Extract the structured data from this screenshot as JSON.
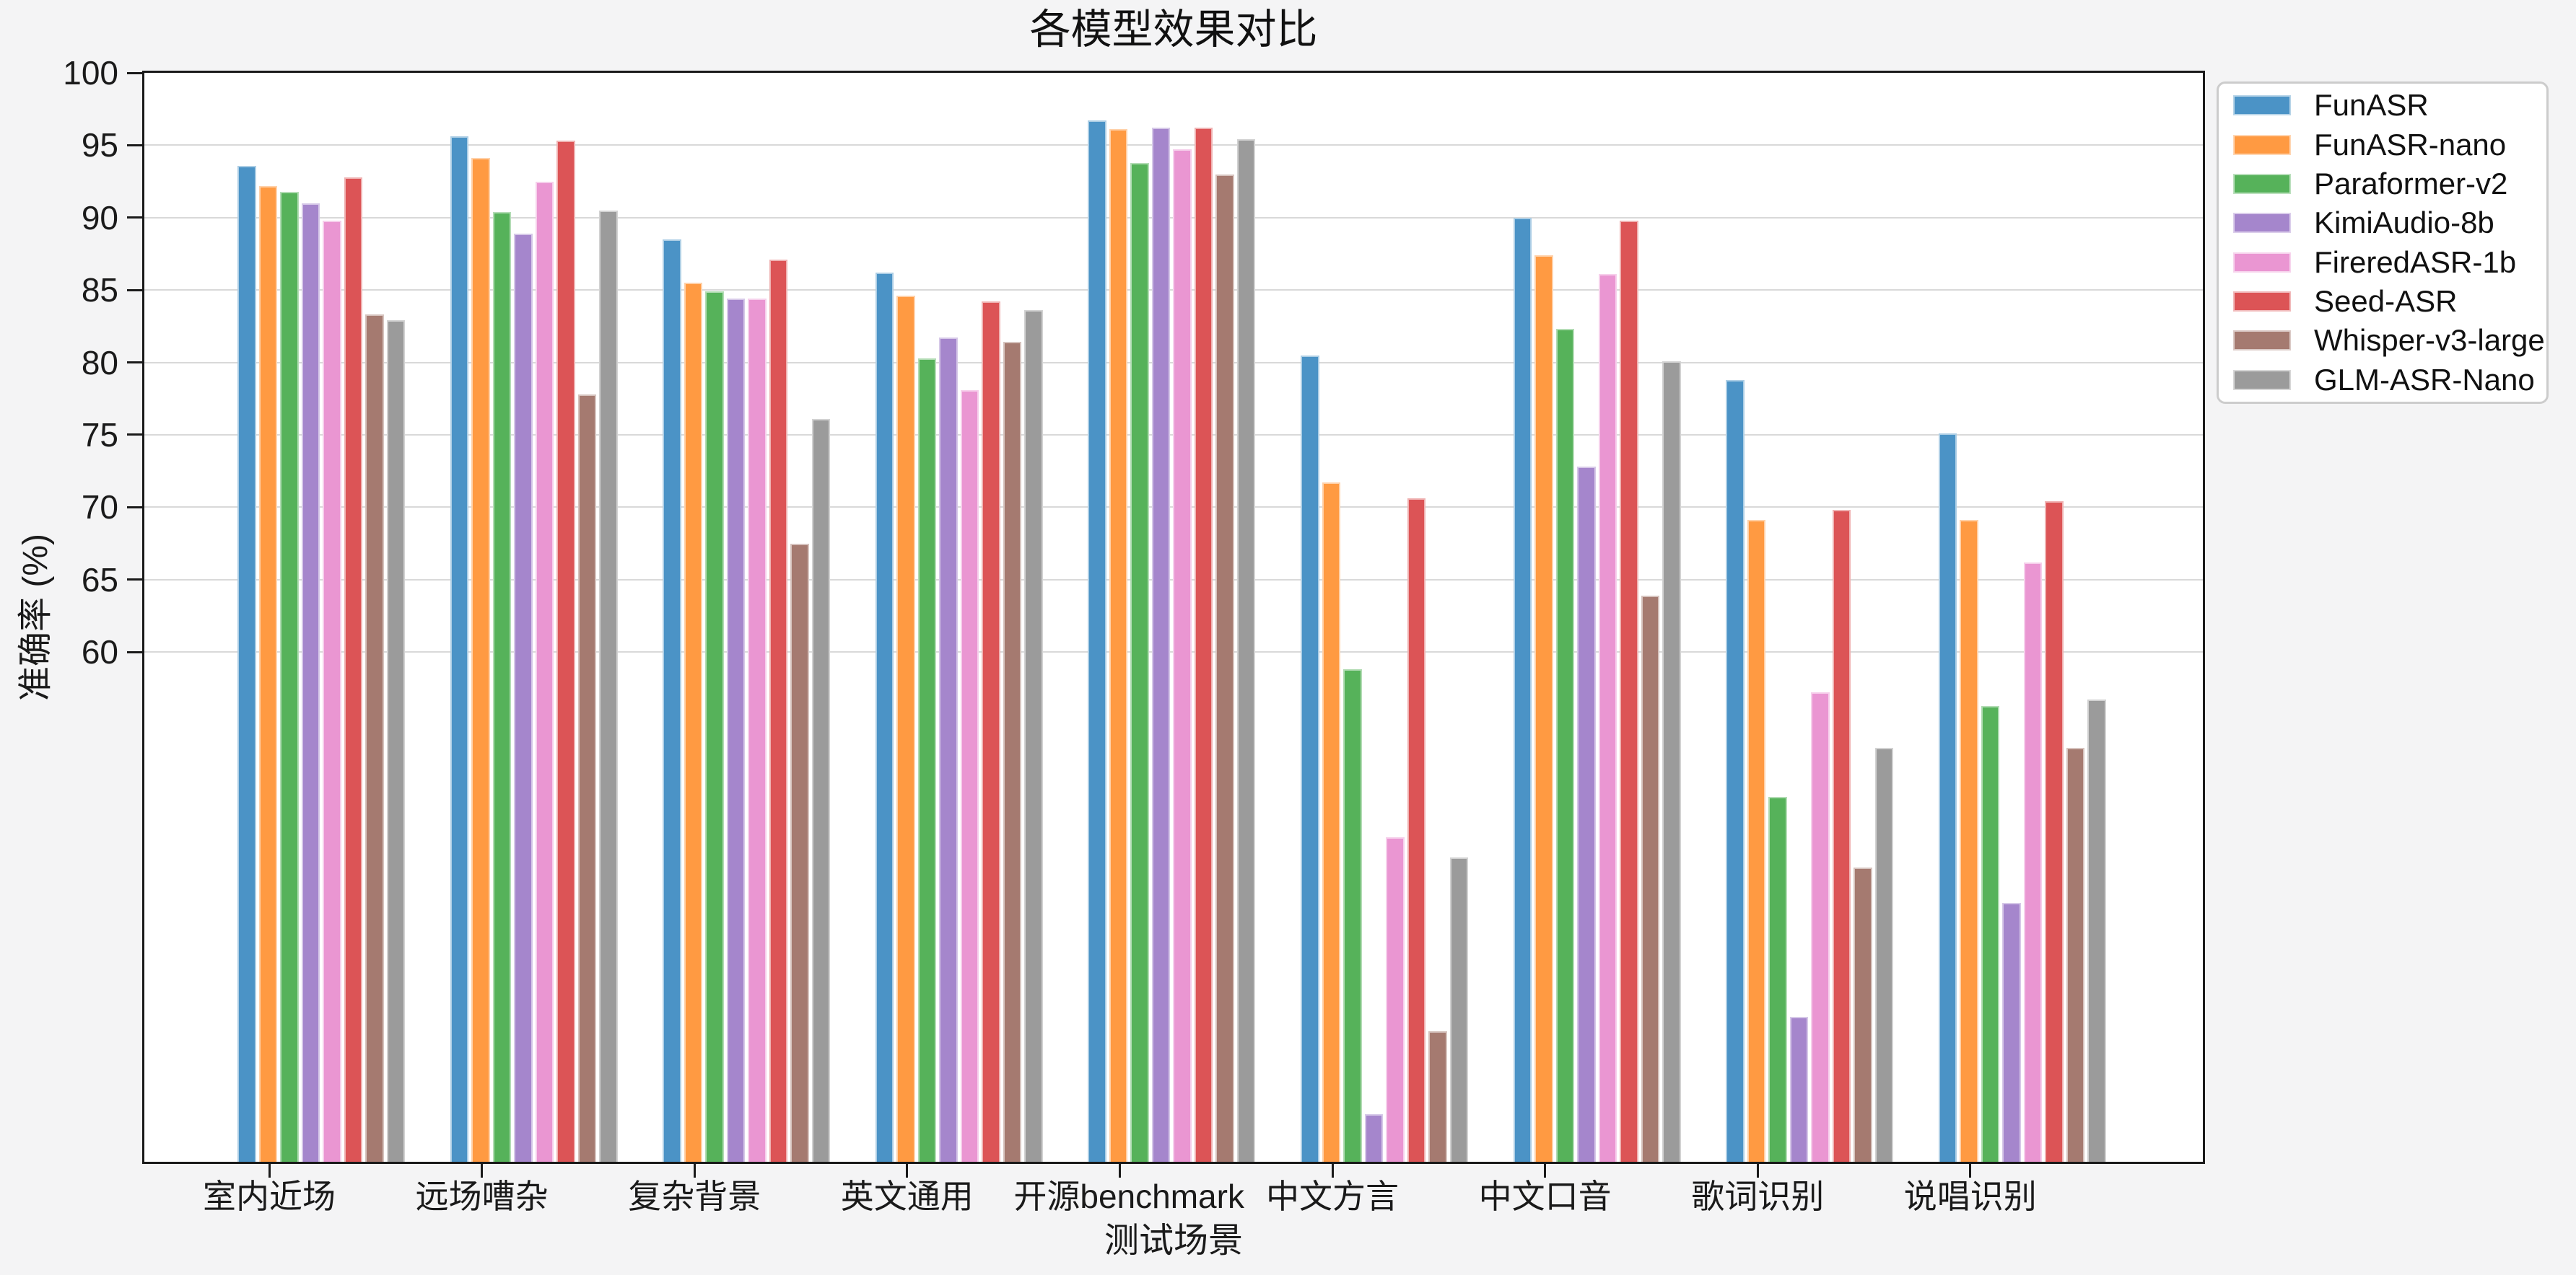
{
  "chart_data": {
    "type": "bar",
    "title": "各模型效果对比",
    "xlabel": "测试场景",
    "ylabel": "准确率 (%)",
    "categories": [
      "室内近场",
      "远场嘈杂",
      "复杂背景",
      "英文通用",
      "开源benchmark",
      "中文方言",
      "中文口音",
      "歌词识别",
      "说唱识别"
    ],
    "series": [
      {
        "name": "FunASR",
        "color": "#4b93c6",
        "values": [
          93.6,
          95.6,
          88.5,
          86.2,
          96.7,
          80.5,
          90.0,
          78.8,
          75.1
        ]
      },
      {
        "name": "FunASR-nano",
        "color": "#ff9a42",
        "values": [
          92.2,
          94.1,
          85.5,
          84.6,
          96.1,
          71.7,
          87.4,
          69.1,
          69.1
        ]
      },
      {
        "name": "Paraformer-v2",
        "color": "#56b25a",
        "values": [
          91.8,
          90.4,
          84.9,
          80.3,
          93.8,
          58.8,
          82.3,
          50.0,
          56.3
        ]
      },
      {
        "name": "KimiAudio-8b",
        "color": "#a586cc",
        "values": [
          91.0,
          88.9,
          84.4,
          81.7,
          96.2,
          28.1,
          72.8,
          34.8,
          42.7
        ]
      },
      {
        "name": "FireredASR-1b",
        "color": "#ea96d2",
        "values": [
          89.8,
          92.5,
          84.4,
          78.1,
          94.7,
          47.2,
          86.1,
          57.2,
          66.2
        ]
      },
      {
        "name": "Seed-ASR",
        "color": "#dc5456",
        "values": [
          92.8,
          95.3,
          87.1,
          84.2,
          96.2,
          70.6,
          89.8,
          69.8,
          70.4
        ]
      },
      {
        "name": "Whisper-v3-large",
        "color": "#a57a70",
        "values": [
          83.3,
          77.8,
          67.5,
          81.4,
          93.0,
          33.8,
          63.9,
          45.1,
          53.4
        ]
      },
      {
        "name": "GLM-ASR-Nano",
        "color": "#9b9b9b",
        "values": [
          82.9,
          90.5,
          76.1,
          83.6,
          95.4,
          45.8,
          80.1,
          53.4,
          56.7
        ]
      }
    ],
    "yticks": [
      100,
      95,
      90,
      85,
      80,
      75,
      70,
      65,
      60
    ],
    "ylim": [
      24.8,
      100
    ],
    "grid": "horizontal gridlines at ticks 60-95, light gray, behind bars",
    "legend_position": "outside upper right"
  },
  "colors": {
    "figure_bg": "#f4f4f5",
    "plot_bg": "#ffffff",
    "grid": "#d9d9d9",
    "spine": "#1a1a1a",
    "legend_bg": "#ffffff",
    "legend_border": "#cccccc",
    "text": "#1a1a1a"
  }
}
